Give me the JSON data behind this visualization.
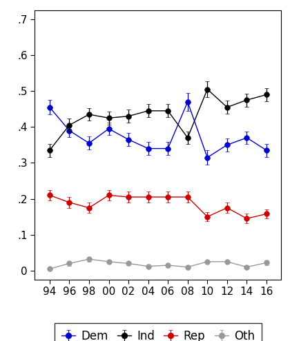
{
  "years": [
    1994,
    1996,
    1998,
    2000,
    2002,
    2004,
    2006,
    2008,
    2010,
    2012,
    2014,
    2016
  ],
  "dem_y": [
    0.455,
    0.39,
    0.355,
    0.395,
    0.365,
    0.34,
    0.34,
    0.47,
    0.315,
    0.35,
    0.37,
    0.335
  ],
  "dem_err": [
    0.02,
    0.018,
    0.018,
    0.018,
    0.018,
    0.018,
    0.018,
    0.025,
    0.02,
    0.018,
    0.018,
    0.018
  ],
  "ind_y": [
    0.335,
    0.405,
    0.435,
    0.425,
    0.43,
    0.445,
    0.445,
    0.37,
    0.505,
    0.455,
    0.475,
    0.49
  ],
  "ind_err": [
    0.018,
    0.018,
    0.018,
    0.018,
    0.018,
    0.018,
    0.018,
    0.018,
    0.022,
    0.018,
    0.018,
    0.018
  ],
  "rep_y": [
    0.21,
    0.19,
    0.175,
    0.21,
    0.205,
    0.205,
    0.205,
    0.205,
    0.15,
    0.175,
    0.145,
    0.158
  ],
  "rep_err": [
    0.015,
    0.015,
    0.015,
    0.015,
    0.015,
    0.015,
    0.015,
    0.015,
    0.013,
    0.015,
    0.013,
    0.013
  ],
  "oth_y": [
    0.005,
    0.02,
    0.032,
    0.025,
    0.02,
    0.012,
    0.015,
    0.01,
    0.025,
    0.025,
    0.01,
    0.022
  ],
  "oth_err": [
    0.005,
    0.006,
    0.007,
    0.006,
    0.005,
    0.005,
    0.005,
    0.005,
    0.006,
    0.006,
    0.005,
    0.006
  ],
  "dem_color": "#0000cc",
  "ind_color": "#000000",
  "rep_color": "#cc0000",
  "oth_color": "#999999",
  "ylim": [
    -0.025,
    0.725
  ],
  "yticks": [
    0.0,
    0.1,
    0.2,
    0.3,
    0.4,
    0.5,
    0.6,
    0.7
  ],
  "ytick_labels": [
    "0",
    ".1",
    ".2",
    ".3",
    ".4",
    ".5",
    ".6",
    ".7"
  ],
  "xtick_labels": [
    "94",
    "96",
    "98",
    "00",
    "02",
    "04",
    "06",
    "08",
    "10",
    "12",
    "14",
    "16"
  ],
  "bg_color": "#ffffff",
  "legend_labels": [
    "Dem",
    "Ind",
    "Rep",
    "Oth"
  ]
}
